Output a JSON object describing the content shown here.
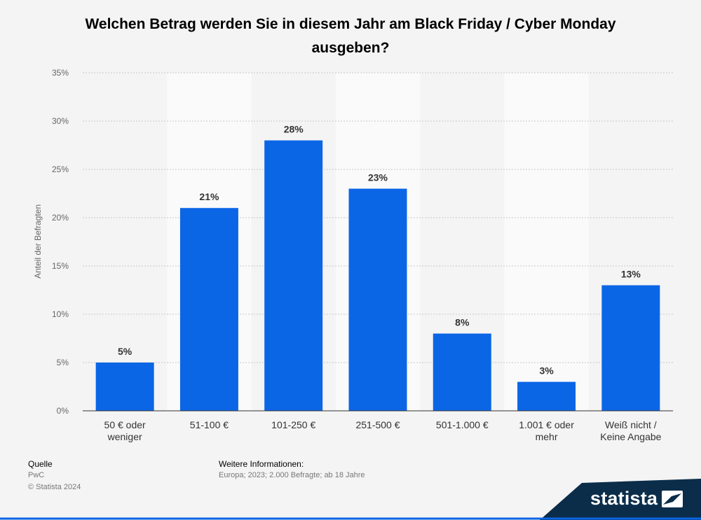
{
  "chart_data": {
    "type": "bar",
    "title": "Welchen Betrag werden Sie in diesem Jahr am Black Friday / Cyber Monday ausgeben?",
    "ylabel": "Anteil der Befragten",
    "xlabel": "",
    "ylim": [
      0,
      35
    ],
    "yticks": [
      0,
      5,
      10,
      15,
      20,
      25,
      30,
      35
    ],
    "ytick_labels": [
      "0%",
      "5%",
      "10%",
      "15%",
      "20%",
      "25%",
      "30%",
      "35%"
    ],
    "grid": true,
    "categories": [
      [
        "50 € oder",
        "weniger"
      ],
      [
        "51-100 €"
      ],
      [
        "101-250 €"
      ],
      [
        "251-500 €"
      ],
      [
        "501-1.000 €"
      ],
      [
        "1.001 € oder",
        "mehr"
      ],
      [
        "Weiß nicht /",
        "Keine Angabe"
      ]
    ],
    "values": [
      5,
      21,
      28,
      23,
      8,
      3,
      13
    ],
    "data_labels": [
      "5%",
      "21%",
      "28%",
      "23%",
      "8%",
      "3%",
      "13%"
    ],
    "bar_color": "#0b66e6"
  },
  "footer": {
    "source_heading": "Quelle",
    "source": "PwC",
    "copyright": "© Statista 2024",
    "info_heading": "Weitere Informationen:",
    "info": "Europa; 2023; 2.000 Befragte; ab 18 Jahre"
  },
  "brand": {
    "name": "statista",
    "color": "#0b2d4a",
    "accent": "#0b66e6"
  }
}
